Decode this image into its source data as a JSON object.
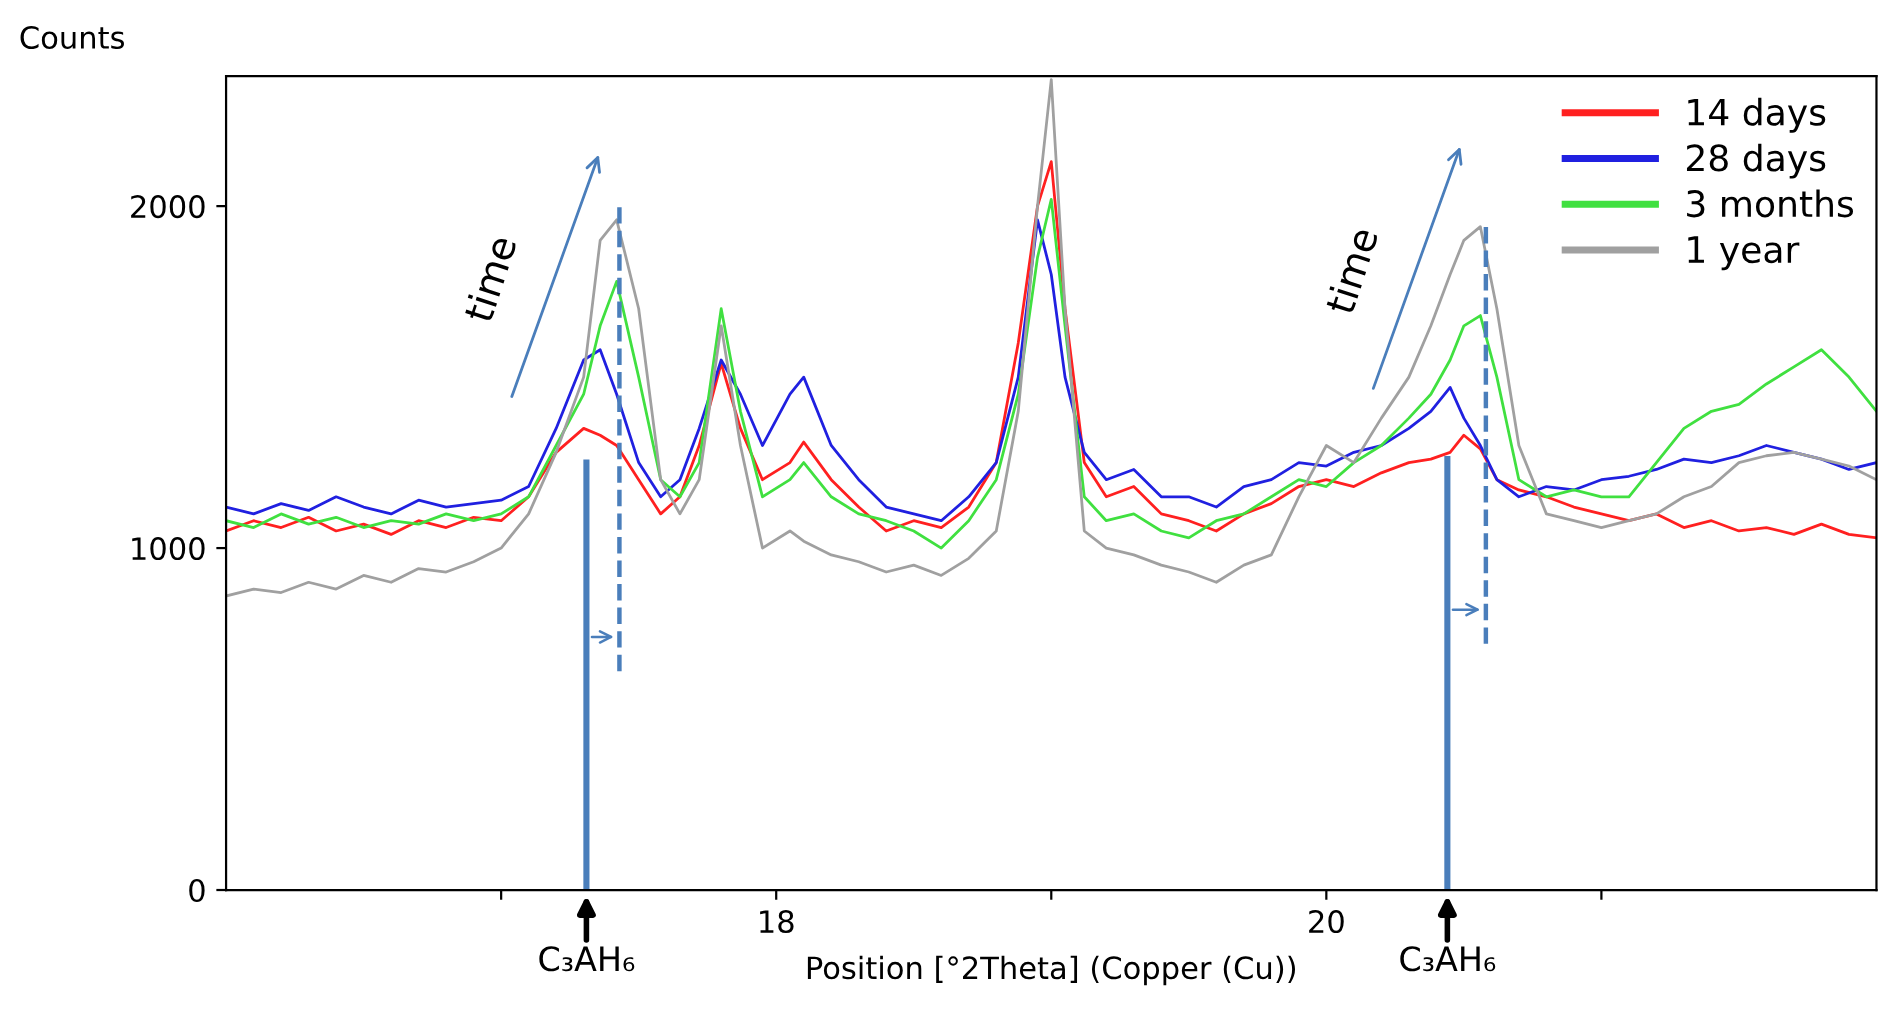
{
  "chart_data": {
    "type": "line",
    "xlabel": "Position [°2Theta] (Copper (Cu))",
    "ylabel": "Counts",
    "x": [
      16.0,
      16.1,
      16.2,
      16.3,
      16.4,
      16.5,
      16.6,
      16.7,
      16.8,
      16.9,
      17.0,
      17.1,
      17.2,
      17.3,
      17.36,
      17.42,
      17.5,
      17.58,
      17.65,
      17.72,
      17.8,
      17.87,
      17.95,
      18.05,
      18.1,
      18.2,
      18.3,
      18.4,
      18.5,
      18.6,
      18.7,
      18.8,
      18.88,
      18.95,
      19.0,
      19.05,
      19.12,
      19.2,
      19.3,
      19.4,
      19.5,
      19.6,
      19.7,
      19.8,
      19.9,
      20.0,
      20.1,
      20.2,
      20.3,
      20.38,
      20.45,
      20.5,
      20.56,
      20.62,
      20.7,
      20.8,
      20.9,
      21.0,
      21.1,
      21.2,
      21.3,
      21.4,
      21.5,
      21.6,
      21.7,
      21.8,
      21.9,
      22.0
    ],
    "series": [
      {
        "name": "14 days",
        "color": "#ff2020",
        "values": [
          1050,
          1080,
          1060,
          1090,
          1050,
          1070,
          1040,
          1080,
          1060,
          1090,
          1080,
          1150,
          1280,
          1350,
          1330,
          1300,
          1200,
          1100,
          1150,
          1300,
          1540,
          1350,
          1200,
          1250,
          1310,
          1200,
          1120,
          1050,
          1080,
          1060,
          1120,
          1250,
          1600,
          2000,
          2130,
          1700,
          1250,
          1150,
          1180,
          1100,
          1080,
          1050,
          1100,
          1130,
          1180,
          1200,
          1180,
          1220,
          1250,
          1260,
          1280,
          1330,
          1290,
          1200,
          1170,
          1150,
          1120,
          1100,
          1080,
          1100,
          1060,
          1080,
          1050,
          1060,
          1040,
          1070,
          1040,
          1030
        ]
      },
      {
        "name": "28 days",
        "color": "#2020e0",
        "values": [
          1120,
          1100,
          1130,
          1110,
          1150,
          1120,
          1100,
          1140,
          1120,
          1130,
          1140,
          1180,
          1350,
          1550,
          1580,
          1450,
          1250,
          1150,
          1200,
          1350,
          1550,
          1450,
          1300,
          1450,
          1500,
          1300,
          1200,
          1120,
          1100,
          1080,
          1150,
          1250,
          1500,
          1960,
          1800,
          1500,
          1280,
          1200,
          1230,
          1150,
          1150,
          1120,
          1180,
          1200,
          1250,
          1240,
          1280,
          1300,
          1350,
          1400,
          1470,
          1380,
          1300,
          1200,
          1150,
          1180,
          1170,
          1200,
          1210,
          1230,
          1260,
          1250,
          1270,
          1300,
          1280,
          1260,
          1230,
          1250
        ]
      },
      {
        "name": "3 months",
        "color": "#40e040",
        "values": [
          1080,
          1060,
          1100,
          1070,
          1090,
          1060,
          1080,
          1070,
          1100,
          1080,
          1100,
          1150,
          1300,
          1450,
          1650,
          1780,
          1500,
          1200,
          1150,
          1250,
          1700,
          1400,
          1150,
          1200,
          1250,
          1150,
          1100,
          1080,
          1050,
          1000,
          1080,
          1200,
          1450,
          1850,
          2020,
          1650,
          1150,
          1080,
          1100,
          1050,
          1030,
          1080,
          1100,
          1150,
          1200,
          1180,
          1250,
          1300,
          1380,
          1450,
          1550,
          1650,
          1680,
          1500,
          1200,
          1150,
          1170,
          1150,
          1150,
          1250,
          1350,
          1400,
          1420,
          1480,
          1530,
          1580,
          1500,
          1400
        ]
      },
      {
        "name": "1 year",
        "color": "#a0a0a0",
        "values": [
          860,
          880,
          870,
          900,
          880,
          920,
          900,
          940,
          930,
          960,
          1000,
          1100,
          1280,
          1500,
          1900,
          1960,
          1700,
          1200,
          1100,
          1200,
          1650,
          1300,
          1000,
          1050,
          1020,
          980,
          960,
          930,
          950,
          920,
          970,
          1050,
          1400,
          2000,
          2370,
          1700,
          1050,
          1000,
          980,
          950,
          930,
          900,
          950,
          980,
          1150,
          1300,
          1250,
          1380,
          1500,
          1650,
          1800,
          1900,
          1940,
          1700,
          1300,
          1100,
          1080,
          1060,
          1080,
          1100,
          1150,
          1180,
          1250,
          1270,
          1280,
          1260,
          1240,
          1200
        ]
      },
      {
        "type": "line",
        "color": "#4a7ebb",
        "line_style": "solid",
        "x": [
          17.31,
          17.31
        ],
        "values": [
          0,
          1250
        ]
      },
      {
        "type": "line",
        "color": "#4a7ebb",
        "line_style": "dashed",
        "x": [
          17.43,
          17.43
        ],
        "values": [
          640,
          2000
        ]
      },
      {
        "type": "line",
        "color": "#4a7ebb",
        "line_style": "solid",
        "x": [
          20.44,
          20.44
        ],
        "values": [
          0,
          1260
        ]
      },
      {
        "type": "line",
        "color": "#4a7ebb",
        "line_style": "dashed",
        "x": [
          20.58,
          20.58
        ],
        "values": [
          720,
          1950
        ]
      }
    ],
    "annotations": [
      "time",
      "time",
      {
        "text": "C₃AH₆",
        "x": 17.31,
        "y": 0
      },
      {
        "text": "C₃AH₆",
        "x": 20.44,
        "y": 0
      }
    ],
    "xlim": [
      16,
      22
    ],
    "ylim": [
      0,
      2380
    ],
    "xticks": [
      {
        "value": 17,
        "label": null
      },
      18,
      {
        "value": 19,
        "label": null
      },
      20,
      {
        "value": 21,
        "label": null
      }
    ],
    "yticks": [
      0,
      1000,
      2000
    ],
    "grid": false,
    "legend": "top right"
  }
}
